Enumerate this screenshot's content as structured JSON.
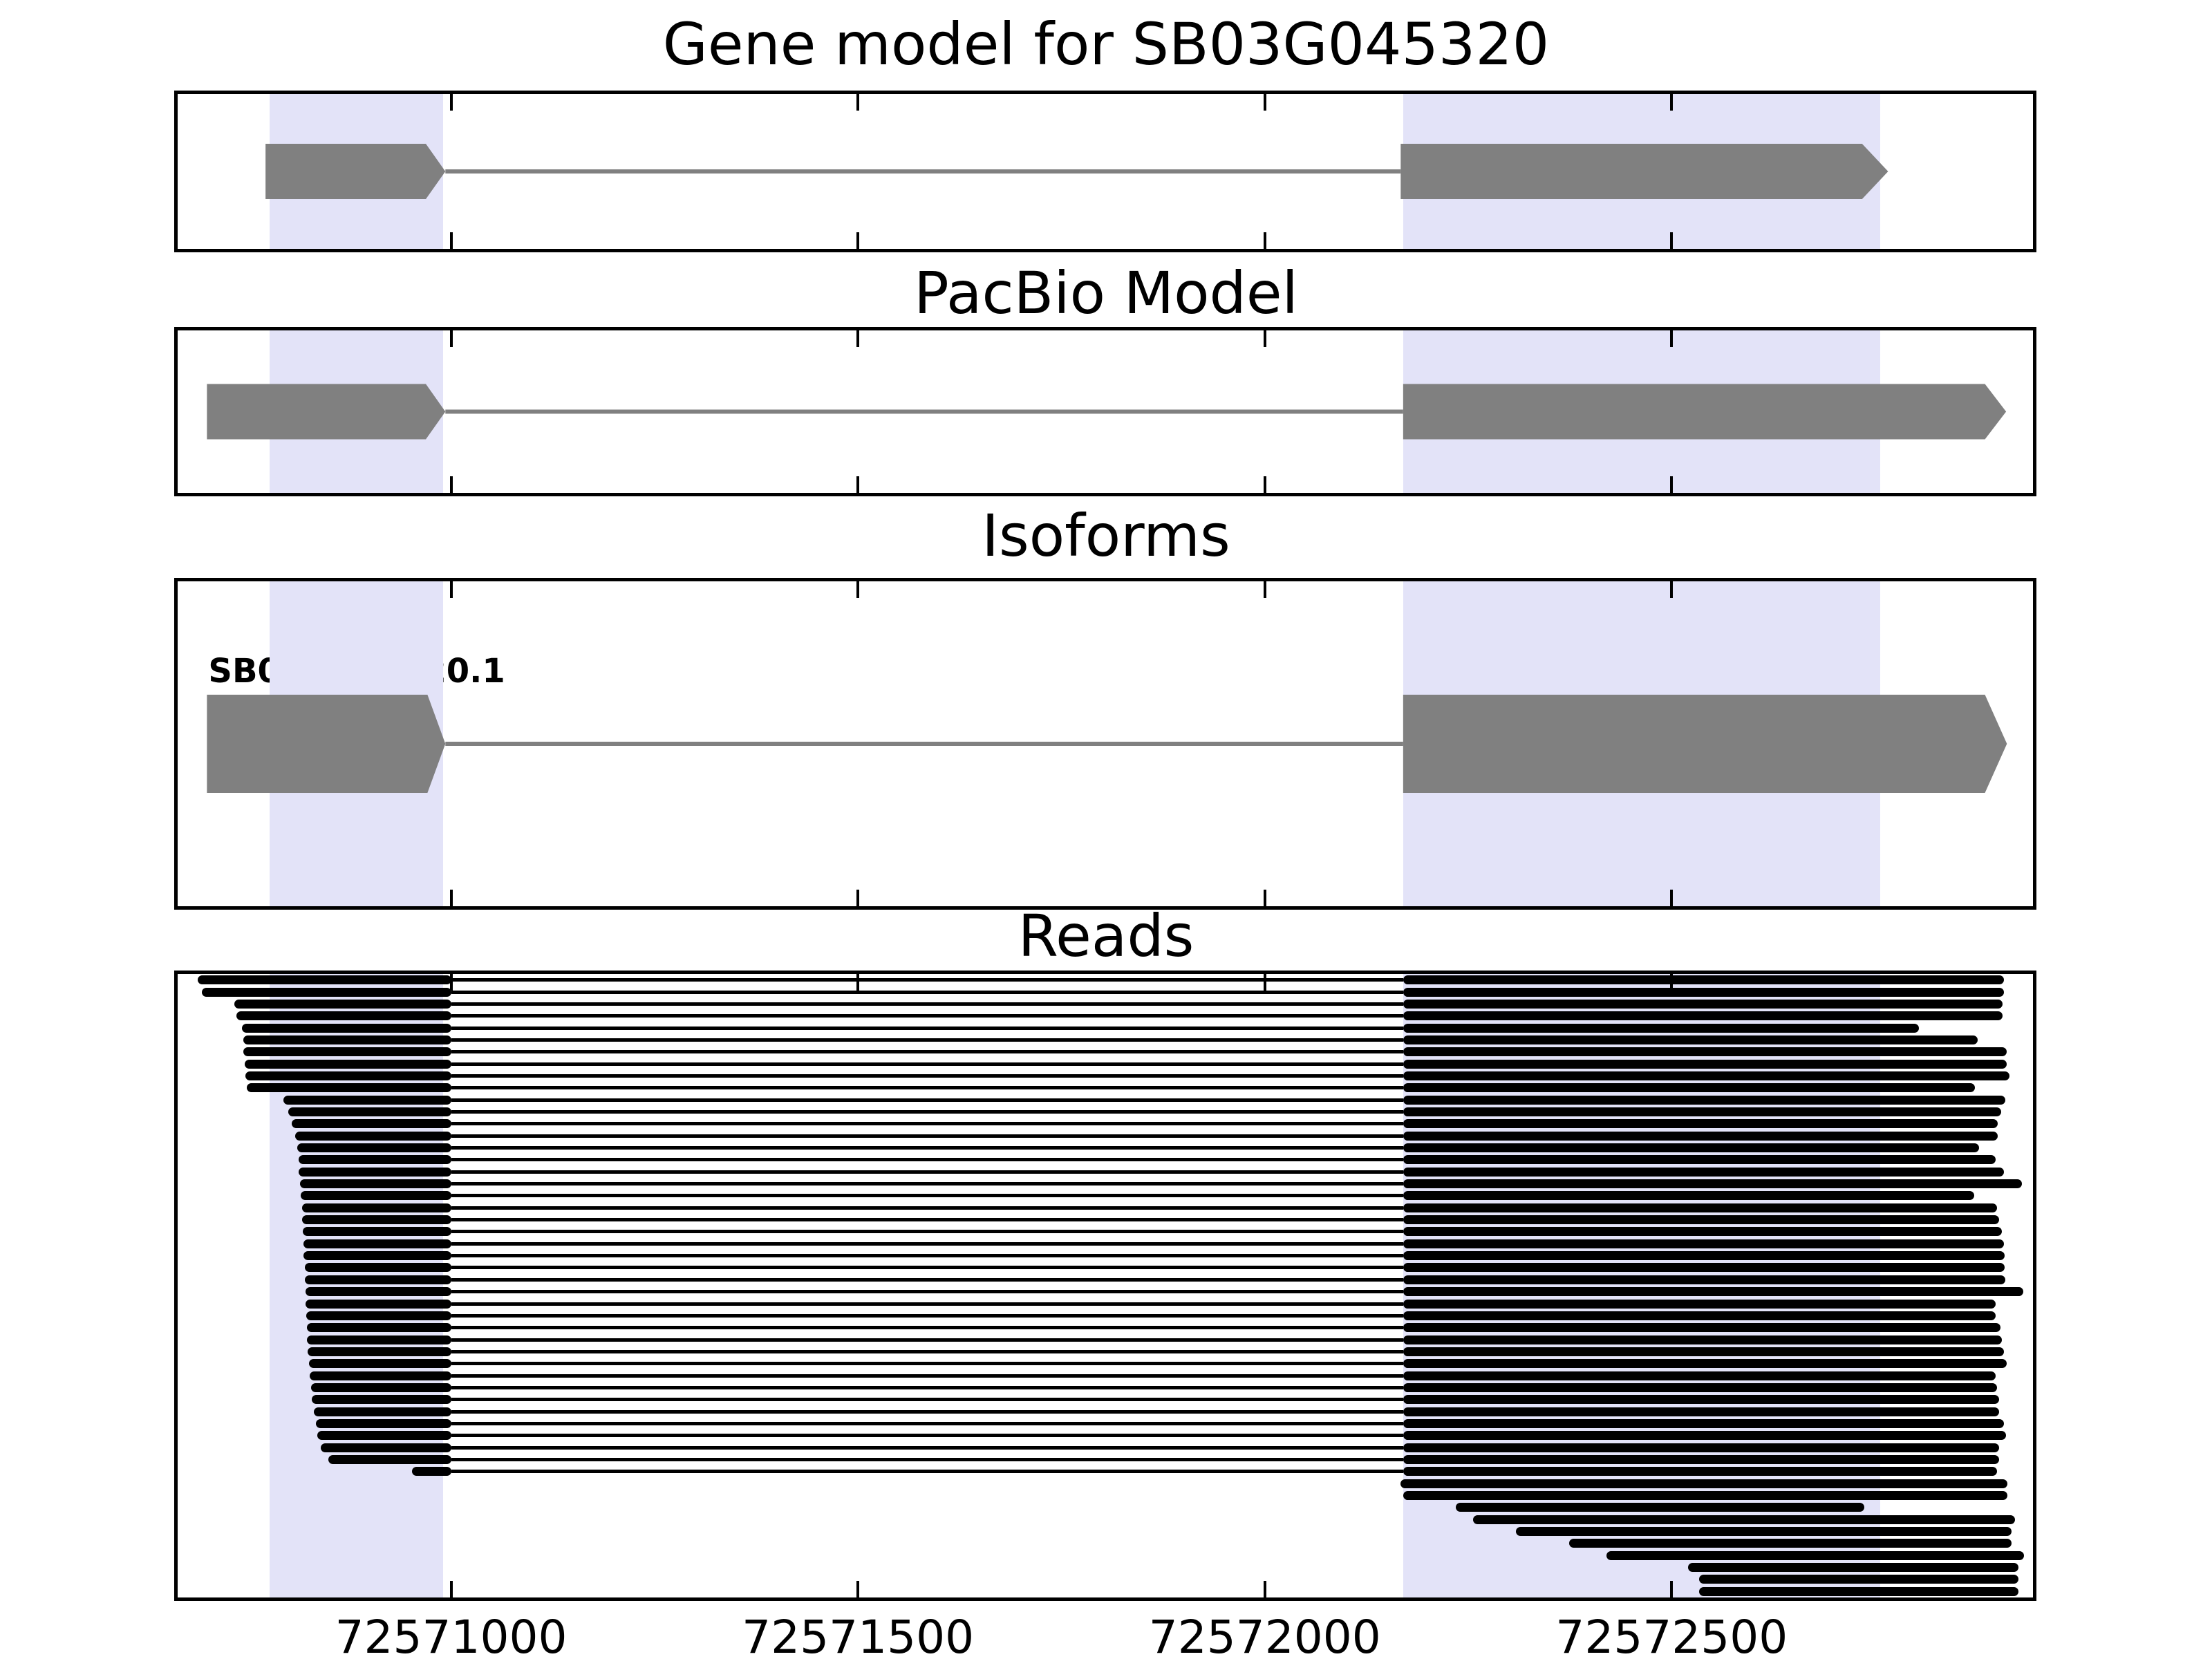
{
  "title": "Gene model for SB03G045320",
  "panel_titles": {
    "pacbio": "PacBio Model",
    "isoforms": "Isoforms",
    "reads": "Reads"
  },
  "isoform_label": "SB03G045320.1",
  "colors": {
    "exon": "#808080",
    "intron_line": "#808080",
    "highlight": "#E3E3F8",
    "read": "#000000",
    "border": "#000000",
    "background": "#ffffff"
  },
  "chart_data": {
    "type": "genome-tracks",
    "title": "Gene model for SB03G045320",
    "x_axis": {
      "lim": [
        72570664,
        72572944
      ],
      "ticks": [
        72571000,
        72571500,
        72572000,
        72572500
      ],
      "tick_labels": [
        "72571000",
        "72571500",
        "72572000",
        "72572500"
      ],
      "tick_direction": "in",
      "grid": false
    },
    "highlight_regions": [
      [
        72570777,
        72570990
      ],
      [
        72572170,
        72572756
      ]
    ],
    "tracks": {
      "gene_model": {
        "title": "Gene model for SB03G045320",
        "strand": "+",
        "exons": [
          {
            "body": [
              72570772,
              72570969
            ],
            "tip": 72570993
          },
          {
            "body": [
              72572167,
              72572734
            ],
            "tip": 72572766
          }
        ]
      },
      "pacbio": {
        "title": "PacBio Model",
        "strand": "+",
        "exons": [
          {
            "body": [
              72570700,
              72570969
            ],
            "tip": 72570993
          },
          {
            "body": [
              72572170,
              72572885
            ],
            "tip": 72572911
          }
        ]
      },
      "isoforms": {
        "title": "Isoforms",
        "label": "SB03G045320.1",
        "strand": "+",
        "exons": [
          {
            "body": [
              72570700,
              72570971
            ],
            "tip": 72570993
          },
          {
            "body": [
              72572170,
              72572885
            ],
            "tip": 72572912
          }
        ]
      },
      "reads": {
        "title": "Reads",
        "exon1_end": 72571000,
        "exon2_start": 72572170,
        "spliced": [
          [
            72570689,
            72572908
          ],
          [
            72570694,
            72572908
          ],
          [
            72570734,
            72572907
          ],
          [
            72570736,
            72572907
          ],
          [
            72570743,
            72572804
          ],
          [
            72570745,
            72572876
          ],
          [
            72570745,
            72572912
          ],
          [
            72570746,
            72572912
          ],
          [
            72570747,
            72572915
          ],
          [
            72570749,
            72572873
          ],
          [
            72570794,
            72572910
          ],
          [
            72570800,
            72572905
          ],
          [
            72570804,
            72572901
          ],
          [
            72570808,
            72572901
          ],
          [
            72570811,
            72572878
          ],
          [
            72570813,
            72572898
          ],
          [
            72570813,
            72572908
          ],
          [
            72570814,
            72572930
          ],
          [
            72570815,
            72572872
          ],
          [
            72570817,
            72572900
          ],
          [
            72570817,
            72572902
          ],
          [
            72570818,
            72572906
          ],
          [
            72570819,
            72572908
          ],
          [
            72570819,
            72572909
          ],
          [
            72570820,
            72572909
          ],
          [
            72570820,
            72572910
          ],
          [
            72570821,
            72572932
          ],
          [
            72570821,
            72572898
          ],
          [
            72570822,
            72572898
          ],
          [
            72570823,
            72572904
          ],
          [
            72570823,
            72572906
          ],
          [
            72570824,
            72572908
          ],
          [
            72570825,
            72572912
          ],
          [
            72570826,
            72572898
          ],
          [
            72570828,
            72572900
          ],
          [
            72570829,
            72572902
          ],
          [
            72570831,
            72572902
          ],
          [
            72570834,
            72572908
          ],
          [
            72570836,
            72572911
          ],
          [
            72570840,
            72572902
          ],
          [
            72570849,
            72572902
          ],
          [
            72570952,
            72572900
          ]
        ],
        "right_only": [
          [
            72572167,
            72572913
          ],
          [
            72572170,
            72572913
          ],
          [
            72572235,
            72572737
          ],
          [
            72572256,
            72572922
          ],
          [
            72572309,
            72572918
          ],
          [
            72572374,
            72572918
          ],
          [
            72572420,
            72572933
          ],
          [
            72572520,
            72572926
          ],
          [
            72572534,
            72572926
          ],
          [
            72572534,
            72572926
          ]
        ]
      }
    }
  }
}
